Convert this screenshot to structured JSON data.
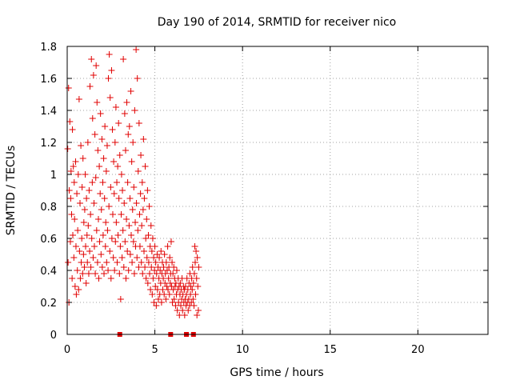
{
  "chart_data": {
    "type": "scatter",
    "title": "Day 190 of 2014, SRMTID for receiver nico",
    "xlabel": "GPS time / hours",
    "ylabel": "SRMTID / TECUs",
    "xlim": [
      0,
      24
    ],
    "ylim": [
      0,
      1.8
    ],
    "x_ticks": [
      "0",
      "5",
      "10",
      "15",
      "20"
    ],
    "y_ticks": [
      "0",
      "0.2",
      "0.4",
      "0.6",
      "0.8",
      "1",
      "1.2",
      "1.4",
      "1.6",
      "1.8"
    ],
    "grid": true,
    "marker": "plus",
    "color": "#e00000",
    "zero_markers_x": [
      3.0,
      5.9,
      6.8,
      7.2
    ],
    "series": [
      {
        "name": "",
        "points": [
          [
            0.03,
            1.16
          ],
          [
            0.05,
            0.45
          ],
          [
            0.08,
            1.54
          ],
          [
            0.1,
            0.2
          ],
          [
            0.12,
            0.9
          ],
          [
            0.15,
            1.33
          ],
          [
            0.18,
            0.58
          ],
          [
            0.2,
            0.85
          ],
          [
            0.22,
            1.02
          ],
          [
            0.25,
            0.75
          ],
          [
            0.28,
            0.35
          ],
          [
            0.3,
            1.28
          ],
          [
            0.32,
            0.62
          ],
          [
            0.35,
            1.05
          ],
          [
            0.38,
            0.48
          ],
          [
            0.4,
            0.95
          ],
          [
            0.42,
            0.72
          ],
          [
            0.45,
            0.3
          ],
          [
            0.48,
            1.08
          ],
          [
            0.5,
            0.55
          ],
          [
            0.52,
            0.25
          ],
          [
            0.55,
            0.88
          ],
          [
            0.58,
            0.4
          ],
          [
            0.6,
            0.65
          ],
          [
            0.63,
            1.0
          ],
          [
            0.65,
            0.28
          ],
          [
            0.68,
            1.47
          ],
          [
            0.7,
            0.52
          ],
          [
            0.73,
            0.82
          ],
          [
            0.75,
            0.35
          ],
          [
            0.78,
            1.18
          ],
          [
            0.8,
            0.45
          ],
          [
            0.83,
            0.6
          ],
          [
            0.85,
            0.92
          ],
          [
            0.88,
            0.38
          ],
          [
            0.9,
            1.1
          ],
          [
            0.93,
            0.5
          ],
          [
            0.95,
            0.7
          ],
          [
            0.98,
            0.42
          ],
          [
            1.0,
            0.78
          ],
          [
            1.03,
            1.0
          ],
          [
            1.05,
            0.55
          ],
          [
            1.08,
            0.32
          ],
          [
            1.1,
            0.85
          ],
          [
            1.13,
            0.62
          ],
          [
            1.15,
            0.45
          ],
          [
            1.18,
            1.2
          ],
          [
            1.2,
            0.68
          ],
          [
            1.23,
            0.38
          ],
          [
            1.25,
            0.9
          ],
          [
            1.28,
            0.52
          ],
          [
            1.3,
            1.55
          ],
          [
            1.33,
            0.75
          ],
          [
            1.35,
            0.42
          ],
          [
            1.38,
            1.72
          ],
          [
            1.4,
            0.6
          ],
          [
            1.43,
            0.95
          ],
          [
            1.45,
            1.35
          ],
          [
            1.48,
            0.48
          ],
          [
            1.5,
            1.62
          ],
          [
            1.53,
            0.82
          ],
          [
            1.55,
            0.55
          ],
          [
            1.58,
            1.25
          ],
          [
            1.6,
            0.38
          ],
          [
            1.63,
            0.98
          ],
          [
            1.65,
            1.68
          ],
          [
            1.68,
            0.65
          ],
          [
            1.7,
            1.45
          ],
          [
            1.73,
            0.45
          ],
          [
            1.75,
            1.15
          ],
          [
            1.78,
            0.72
          ],
          [
            1.8,
            0.35
          ],
          [
            1.83,
            1.05
          ],
          [
            1.85,
            0.58
          ],
          [
            1.88,
            0.88
          ],
          [
            1.9,
            1.38
          ],
          [
            1.93,
            0.5
          ],
          [
            1.95,
            0.78
          ],
          [
            1.98,
            1.22
          ],
          [
            2.0,
            0.42
          ],
          [
            2.03,
            0.95
          ],
          [
            2.05,
            0.62
          ],
          [
            2.08,
            1.1
          ],
          [
            2.1,
            0.38
          ],
          [
            2.13,
            0.85
          ],
          [
            2.15,
            1.3
          ],
          [
            2.18,
            0.55
          ],
          [
            2.2,
            0.7
          ],
          [
            2.23,
            1.02
          ],
          [
            2.25,
            0.45
          ],
          [
            2.28,
            1.18
          ],
          [
            2.3,
            0.65
          ],
          [
            2.33,
            0.4
          ],
          [
            2.35,
            1.6
          ],
          [
            2.38,
            0.8
          ],
          [
            2.4,
            1.75
          ],
          [
            2.43,
            0.52
          ],
          [
            2.45,
            1.48
          ],
          [
            2.48,
            0.92
          ],
          [
            2.5,
            0.35
          ],
          [
            2.53,
            1.65
          ],
          [
            2.55,
            0.6
          ],
          [
            2.58,
            1.28
          ],
          [
            2.6,
            0.75
          ],
          [
            2.63,
            0.48
          ],
          [
            2.65,
            1.08
          ],
          [
            2.68,
            0.88
          ],
          [
            2.7,
            0.4
          ],
          [
            2.73,
            1.2
          ],
          [
            2.75,
            0.58
          ],
          [
            2.78,
            1.42
          ],
          [
            2.8,
            0.7
          ],
          [
            2.83,
            0.95
          ],
          [
            2.85,
            0.45
          ],
          [
            2.88,
            1.05
          ],
          [
            2.9,
            0.62
          ],
          [
            2.93,
            1.32
          ],
          [
            2.95,
            0.85
          ],
          [
            2.98,
            0.38
          ],
          [
            3.0,
            1.12
          ],
          [
            3.03,
            0.55
          ],
          [
            3.05,
            0.22
          ],
          [
            3.08,
            0.75
          ],
          [
            3.1,
            1.0
          ],
          [
            3.13,
            0.48
          ],
          [
            3.15,
            0.9
          ],
          [
            3.18,
            0.65
          ],
          [
            3.2,
            1.72
          ],
          [
            3.23,
            0.42
          ],
          [
            3.25,
            0.82
          ],
          [
            3.28,
            1.38
          ],
          [
            3.3,
            0.58
          ],
          [
            3.33,
            1.15
          ],
          [
            3.35,
            0.35
          ],
          [
            3.38,
            0.72
          ],
          [
            3.4,
            1.45
          ],
          [
            3.43,
            0.52
          ],
          [
            3.45,
            0.95
          ],
          [
            3.48,
            1.25
          ],
          [
            3.5,
            0.4
          ],
          [
            3.53,
            0.68
          ],
          [
            3.55,
            1.3
          ],
          [
            3.58,
            0.85
          ],
          [
            3.6,
            0.5
          ],
          [
            3.63,
            1.52
          ],
          [
            3.65,
            0.62
          ],
          [
            3.68,
            1.08
          ],
          [
            3.7,
            0.45
          ],
          [
            3.73,
            0.78
          ],
          [
            3.75,
            1.2
          ],
          [
            3.78,
            0.58
          ],
          [
            3.8,
            0.92
          ],
          [
            3.83,
            0.38
          ],
          [
            3.85,
            1.4
          ],
          [
            3.88,
            0.7
          ],
          [
            3.9,
            0.55
          ],
          [
            3.93,
            1.78
          ],
          [
            3.95,
            0.82
          ],
          [
            3.98,
            0.48
          ],
          [
            4.0,
            1.6
          ],
          [
            4.03,
            0.65
          ],
          [
            4.05,
            1.02
          ],
          [
            4.08,
            0.42
          ],
          [
            4.1,
            1.32
          ],
          [
            4.13,
            0.75
          ],
          [
            4.15,
            0.55
          ],
          [
            4.18,
            0.88
          ],
          [
            4.2,
            1.12
          ],
          [
            4.23,
            0.45
          ],
          [
            4.25,
            0.68
          ],
          [
            4.28,
            0.95
          ],
          [
            4.3,
            0.38
          ],
          [
            4.33,
            0.78
          ],
          [
            4.35,
            1.22
          ],
          [
            4.38,
            0.52
          ],
          [
            4.4,
            0.85
          ],
          [
            4.43,
            0.42
          ],
          [
            4.45,
            1.05
          ],
          [
            4.48,
            0.6
          ],
          [
            4.5,
            0.35
          ],
          [
            4.53,
            0.72
          ],
          [
            4.55,
            0.48
          ],
          [
            4.58,
            0.9
          ],
          [
            4.6,
            0.32
          ],
          [
            4.63,
            0.62
          ],
          [
            4.65,
            0.45
          ],
          [
            4.68,
            0.8
          ],
          [
            4.7,
            0.38
          ],
          [
            4.73,
            0.55
          ],
          [
            4.75,
            0.28
          ],
          [
            4.78,
            0.68
          ],
          [
            4.8,
            0.42
          ],
          [
            4.83,
            0.52
          ],
          [
            4.85,
            0.25
          ],
          [
            4.88,
            0.6
          ],
          [
            4.9,
            0.35
          ],
          [
            4.93,
            0.48
          ],
          [
            4.95,
            0.2
          ],
          [
            4.98,
            0.4
          ],
          [
            5.0,
            0.55
          ],
          [
            5.03,
            0.3
          ],
          [
            5.05,
            0.45
          ],
          [
            5.08,
            0.18
          ],
          [
            5.1,
            0.38
          ],
          [
            5.13,
            0.5
          ],
          [
            5.15,
            0.28
          ],
          [
            5.18,
            0.42
          ],
          [
            5.2,
            0.22
          ],
          [
            5.23,
            0.35
          ],
          [
            5.25,
            0.48
          ],
          [
            5.28,
            0.25
          ],
          [
            5.3,
            0.4
          ],
          [
            5.33,
            0.32
          ],
          [
            5.35,
            0.52
          ],
          [
            5.38,
            0.2
          ],
          [
            5.4,
            0.38
          ],
          [
            5.43,
            0.45
          ],
          [
            5.45,
            0.28
          ],
          [
            5.48,
            0.35
          ],
          [
            5.5,
            0.42
          ],
          [
            5.53,
            0.25
          ],
          [
            5.55,
            0.5
          ],
          [
            5.58,
            0.32
          ],
          [
            5.6,
            0.38
          ],
          [
            5.63,
            0.22
          ],
          [
            5.65,
            0.45
          ],
          [
            5.68,
            0.3
          ],
          [
            5.7,
            0.4
          ],
          [
            5.73,
            0.55
          ],
          [
            5.75,
            0.28
          ],
          [
            5.78,
            0.35
          ],
          [
            5.8,
            0.42
          ],
          [
            5.83,
            0.25
          ],
          [
            5.85,
            0.48
          ],
          [
            5.88,
            0.32
          ],
          [
            5.9,
            0.38
          ],
          [
            5.93,
            0.58
          ],
          [
            5.95,
            0.3
          ],
          [
            5.98,
            0.45
          ],
          [
            6.0,
            0.2
          ],
          [
            6.03,
            0.38
          ],
          [
            6.05,
            0.28
          ],
          [
            6.08,
            0.42
          ],
          [
            6.1,
            0.22
          ],
          [
            6.13,
            0.35
          ],
          [
            6.15,
            0.3
          ],
          [
            6.18,
            0.18
          ],
          [
            6.2,
            0.32
          ],
          [
            6.23,
            0.25
          ],
          [
            6.25,
            0.4
          ],
          [
            6.28,
            0.15
          ],
          [
            6.3,
            0.28
          ],
          [
            6.33,
            0.35
          ],
          [
            6.35,
            0.2
          ],
          [
            6.38,
            0.3
          ],
          [
            6.4,
            0.12
          ],
          [
            6.43,
            0.25
          ],
          [
            6.45,
            0.32
          ],
          [
            6.48,
            0.18
          ],
          [
            6.5,
            0.28
          ],
          [
            6.53,
            0.22
          ],
          [
            6.55,
            0.35
          ],
          [
            6.58,
            0.15
          ],
          [
            6.6,
            0.25
          ],
          [
            6.63,
            0.3
          ],
          [
            6.65,
            0.2
          ],
          [
            6.68,
            0.28
          ],
          [
            6.7,
            0.12
          ],
          [
            6.73,
            0.22
          ],
          [
            6.75,
            0.3
          ],
          [
            6.78,
            0.18
          ],
          [
            6.8,
            0.25
          ],
          [
            6.83,
            0.35
          ],
          [
            6.85,
            0.2
          ],
          [
            6.88,
            0.28
          ],
          [
            6.9,
            0.15
          ],
          [
            6.93,
            0.22
          ],
          [
            6.95,
            0.32
          ],
          [
            6.98,
            0.18
          ],
          [
            7.0,
            0.38
          ],
          [
            7.03,
            0.25
          ],
          [
            7.05,
            0.3
          ],
          [
            7.08,
            0.2
          ],
          [
            7.1,
            0.35
          ],
          [
            7.13,
            0.28
          ],
          [
            7.15,
            0.42
          ],
          [
            7.18,
            0.22
          ],
          [
            7.2,
            0.32
          ],
          [
            7.23,
            0.18
          ],
          [
            7.25,
            0.38
          ],
          [
            7.28,
            0.55
          ],
          [
            7.3,
            0.45
          ],
          [
            7.32,
            0.25
          ],
          [
            7.35,
            0.52
          ],
          [
            7.38,
            0.35
          ],
          [
            7.4,
            0.12
          ],
          [
            7.42,
            0.48
          ],
          [
            7.45,
            0.3
          ],
          [
            7.48,
            0.15
          ],
          [
            7.5,
            0.42
          ]
        ]
      }
    ]
  }
}
